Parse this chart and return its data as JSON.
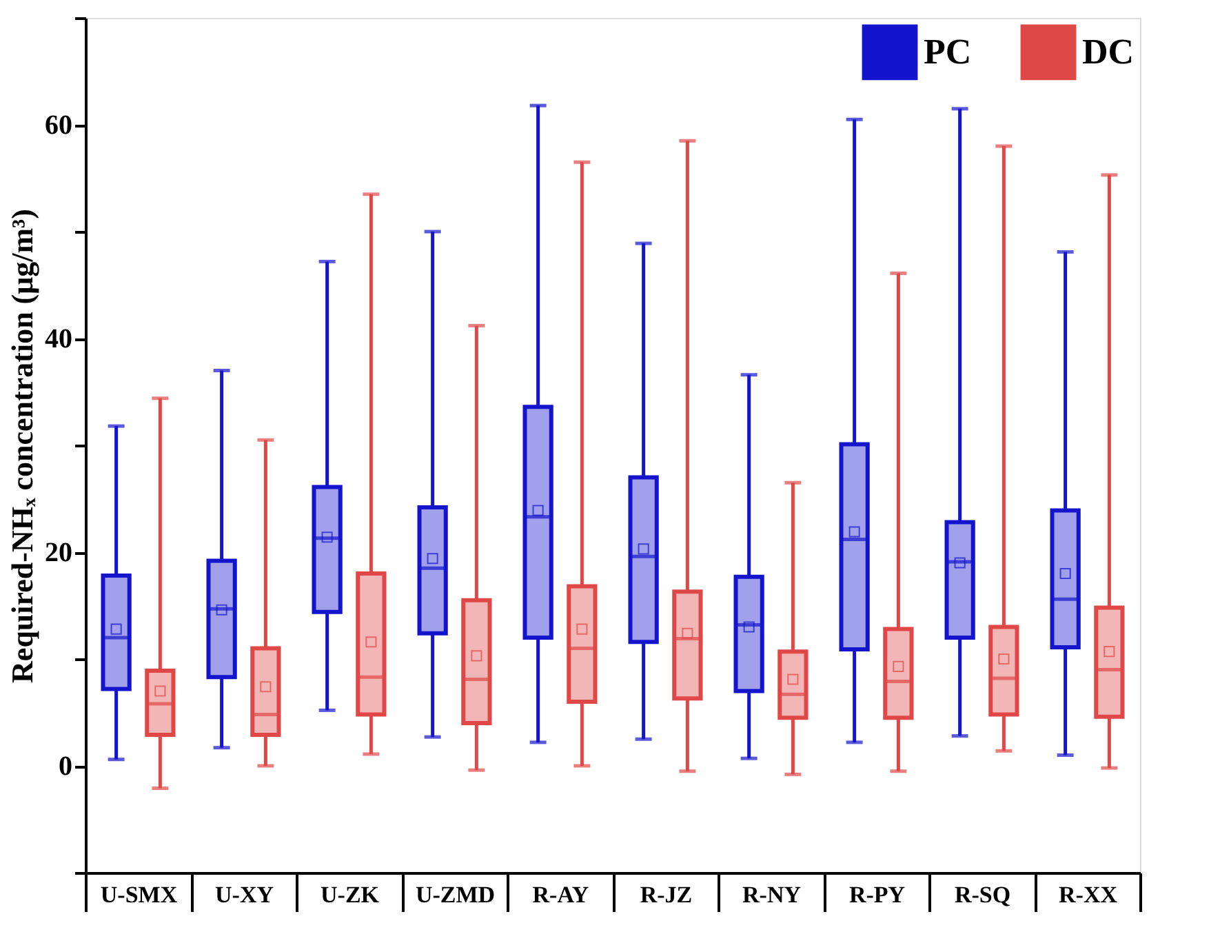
{
  "chart_data": {
    "type": "box",
    "ylabel": "Required-NHₓ concentration (μg/m³)",
    "categories": [
      "U-SMX",
      "U-XY",
      "U-ZK",
      "U-ZMD",
      "R-AY",
      "R-JZ",
      "R-NY",
      "R-PY",
      "R-SQ",
      "R-XX"
    ],
    "ylim": [
      -10,
      70
    ],
    "yticks": [
      {
        "value": -10,
        "label": null
      },
      0,
      {
        "value": 10,
        "label": null
      },
      20,
      {
        "value": 30,
        "label": null
      },
      40,
      {
        "value": 50,
        "label": null
      },
      60,
      {
        "value": 70,
        "label": null
      }
    ],
    "grid": false,
    "legend": "top right",
    "series": [
      {
        "name": "PC",
        "color": "#1414cc",
        "boxes": [
          {
            "low": 0.6,
            "q1": 7.2,
            "median": 12.0,
            "q3": 17.8,
            "high": 31.8,
            "mean": 12.8
          },
          {
            "low": 1.7,
            "q1": 8.3,
            "median": 14.7,
            "q3": 19.2,
            "high": 37.0,
            "mean": 14.6
          },
          {
            "low": 5.2,
            "q1": 14.4,
            "median": 21.3,
            "q3": 26.1,
            "high": 47.2,
            "mean": 21.4
          },
          {
            "low": 2.7,
            "q1": 12.4,
            "median": 18.5,
            "q3": 24.2,
            "high": 50.0,
            "mean": 19.4
          },
          {
            "low": 2.2,
            "q1": 12.0,
            "median": 23.3,
            "q3": 33.6,
            "high": 61.8,
            "mean": 23.9
          },
          {
            "low": 2.5,
            "q1": 11.6,
            "median": 19.6,
            "q3": 27.0,
            "high": 48.9,
            "mean": 20.3
          },
          {
            "low": 0.7,
            "q1": 7.0,
            "median": 13.2,
            "q3": 17.7,
            "high": 36.6,
            "mean": 13.0
          },
          {
            "low": 2.2,
            "q1": 10.9,
            "median": 21.2,
            "q3": 30.1,
            "high": 60.5,
            "mean": 21.9
          },
          {
            "low": 2.8,
            "q1": 12.0,
            "median": 19.1,
            "q3": 22.8,
            "high": 61.5,
            "mean": 19.0
          },
          {
            "low": 1.0,
            "q1": 11.1,
            "median": 15.6,
            "q3": 23.9,
            "high": 48.1,
            "mean": 18.0
          }
        ]
      },
      {
        "name": "DC",
        "color": "#e04848",
        "boxes": [
          {
            "low": -2.1,
            "q1": 2.9,
            "median": 5.8,
            "q3": 8.9,
            "high": 34.4,
            "mean": 7.0
          },
          {
            "low": 0.0,
            "q1": 2.9,
            "median": 4.8,
            "q3": 11.0,
            "high": 30.5,
            "mean": 7.4
          },
          {
            "low": 1.1,
            "q1": 4.8,
            "median": 8.3,
            "q3": 18.0,
            "high": 53.5,
            "mean": 11.6
          },
          {
            "low": -0.4,
            "q1": 4.0,
            "median": 8.1,
            "q3": 15.5,
            "high": 41.2,
            "mean": 10.3
          },
          {
            "low": 0.0,
            "q1": 6.0,
            "median": 11.0,
            "q3": 16.8,
            "high": 56.5,
            "mean": 12.8
          },
          {
            "low": -0.5,
            "q1": 6.3,
            "median": 11.9,
            "q3": 16.3,
            "high": 58.5,
            "mean": 12.4
          },
          {
            "low": -0.8,
            "q1": 4.5,
            "median": 6.7,
            "q3": 10.7,
            "high": 26.5,
            "mean": 8.1
          },
          {
            "low": -0.5,
            "q1": 4.5,
            "median": 7.9,
            "q3": 12.8,
            "high": 46.1,
            "mean": 9.3
          },
          {
            "low": 1.4,
            "q1": 4.8,
            "median": 8.2,
            "q3": 13.0,
            "high": 58.0,
            "mean": 10.0
          },
          {
            "low": -0.2,
            "q1": 4.6,
            "median": 9.0,
            "q3": 14.8,
            "high": 55.3,
            "mean": 10.7
          }
        ]
      }
    ]
  }
}
